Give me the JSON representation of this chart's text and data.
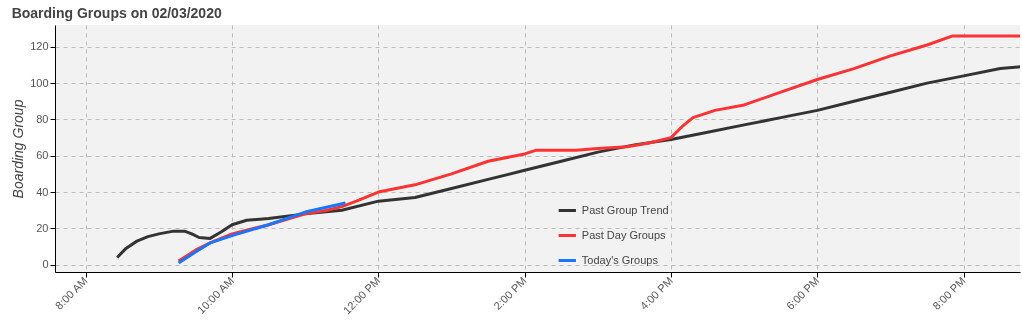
{
  "chart_data": {
    "type": "line",
    "title": "Boarding Groups on 02/03/2020",
    "ylabel": "Boarding Group",
    "xlim": [
      7.58,
      20.77
    ],
    "ylim": [
      -4,
      132
    ],
    "xticks": [
      {
        "value": 8,
        "label": "8:00 AM"
      },
      {
        "value": 10,
        "label": "10:00 AM"
      },
      {
        "value": 12,
        "label": "12:00 PM"
      },
      {
        "value": 14,
        "label": "2:00 PM"
      },
      {
        "value": 16,
        "label": "4:00 PM"
      },
      {
        "value": 18,
        "label": "6:00 PM"
      },
      {
        "value": 20,
        "label": "8:00 PM"
      }
    ],
    "yticks": [
      0,
      20,
      40,
      60,
      80,
      100,
      120
    ],
    "grid": true,
    "legend": "bottom",
    "line_style": "solid",
    "series": [
      {
        "name": "Past Group Trend",
        "color": "#333333",
        "x": [
          8.43,
          8.55,
          8.7,
          8.85,
          9.0,
          9.2,
          9.35,
          9.45,
          9.55,
          9.7,
          9.85,
          10.0,
          10.2,
          10.5,
          11.0,
          11.5,
          12.0,
          12.5,
          13.0,
          13.5,
          14.0,
          14.5,
          15.0,
          15.5,
          16.0,
          16.5,
          17.0,
          17.5,
          18.0,
          18.5,
          19.0,
          19.5,
          20.0,
          20.5,
          20.77
        ],
        "values": [
          4,
          9,
          13,
          15.5,
          17,
          18.5,
          18.5,
          17,
          15,
          14.5,
          18,
          22,
          24.5,
          25.5,
          28,
          30,
          35,
          37,
          42,
          47,
          52,
          57,
          62,
          66,
          69,
          73,
          77,
          81,
          85,
          90,
          95,
          100,
          104,
          108,
          109
        ]
      },
      {
        "name": "Past Day Groups",
        "color": "#ff3333",
        "x": [
          9.27,
          9.5,
          9.7,
          10.0,
          10.5,
          11.0,
          11.3,
          11.5,
          11.7,
          12.0,
          12.5,
          13.0,
          13.5,
          14.0,
          14.15,
          14.7,
          15.0,
          15.4,
          15.7,
          16.0,
          16.15,
          16.3,
          16.6,
          17.0,
          17.5,
          18.0,
          18.5,
          19.0,
          19.5,
          19.85,
          20.77
        ],
        "values": [
          2,
          8,
          12,
          17,
          22,
          28,
          30,
          32,
          35,
          40,
          44,
          50,
          57,
          61,
          63,
          63,
          64,
          65,
          67,
          70,
          76,
          81,
          85,
          88,
          95,
          102,
          108,
          115,
          121,
          126,
          126
        ]
      },
      {
        "name": "Today's Groups",
        "color": "#1a75ff",
        "x": [
          9.27,
          9.5,
          9.7,
          10.0,
          10.5,
          11.0,
          11.55
        ],
        "values": [
          1,
          7,
          12,
          16,
          22,
          29,
          34
        ]
      }
    ]
  }
}
